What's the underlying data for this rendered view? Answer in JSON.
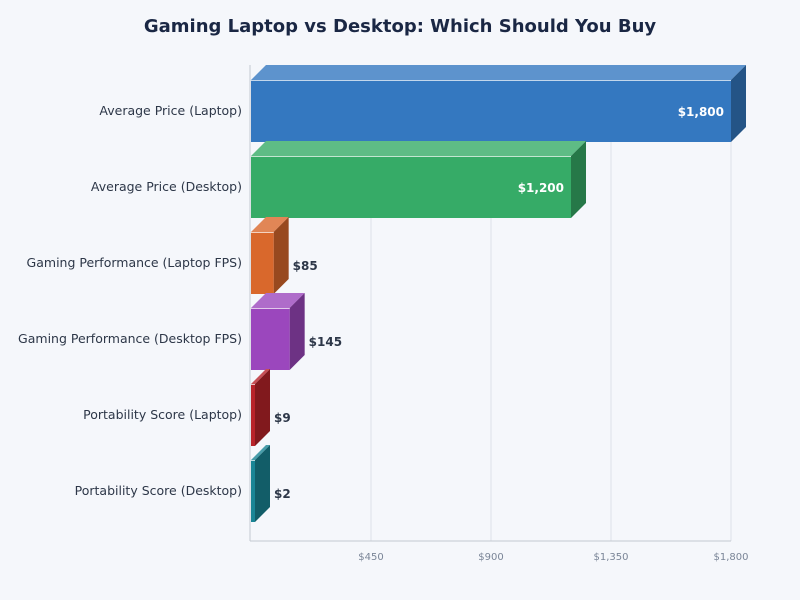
{
  "chart_data": {
    "type": "bar",
    "orientation": "horizontal",
    "title": "Gaming Laptop vs Desktop: Which Should You Buy",
    "categories": [
      "Average Price (Laptop)",
      "Average Price (Desktop)",
      "Gaming Performance (Laptop FPS)",
      "Gaming Performance (Desktop FPS)",
      "Portability Score (Laptop)",
      "Portability Score (Desktop)"
    ],
    "values": [
      1800,
      1200,
      85,
      145,
      9,
      2
    ],
    "data_labels": [
      "$1,800",
      "$1,200",
      "$85",
      "$145",
      "$9",
      "$2"
    ],
    "colors": [
      "#3478c0",
      "#36ab67",
      "#d9682c",
      "#9b47bd",
      "#b8232a",
      "#1a8595"
    ],
    "xlim": [
      0,
      1800
    ],
    "xticks": [
      450,
      900,
      1350,
      1800
    ],
    "xtick_labels": [
      "$450",
      "$900",
      "$1,350",
      "$1,800"
    ],
    "grid": true,
    "style": "3d"
  }
}
